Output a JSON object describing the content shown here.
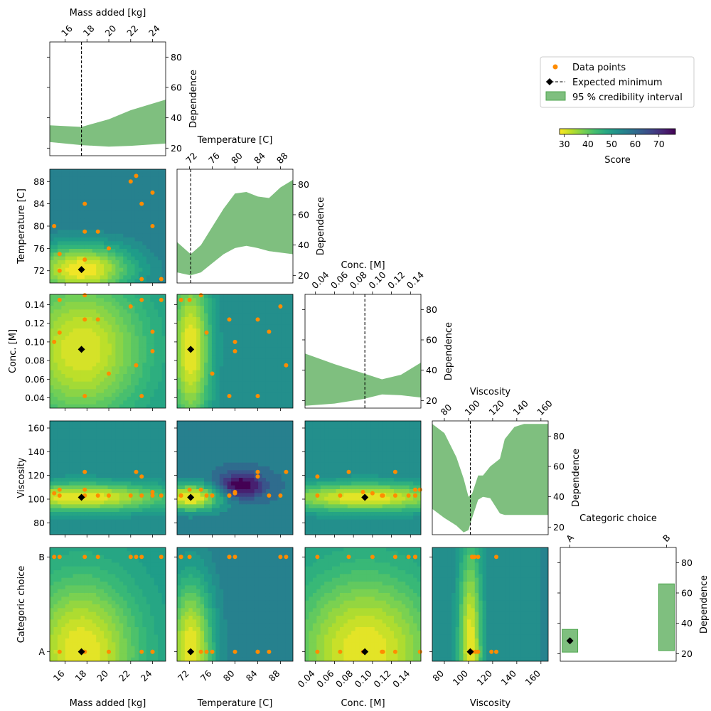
{
  "chart_data": {
    "type": "pairplot",
    "colors": {
      "points": "#ff8c00",
      "minimum": "#000000",
      "credible_fill": "#7fbf7f",
      "credible_edge": "#4ea64e"
    },
    "legend": {
      "placement": "top-right",
      "items": [
        {
          "label": "Data points"
        },
        {
          "label": "Expected minimum"
        },
        {
          "label": "95 % credibility interval"
        }
      ]
    },
    "colorbar": {
      "label": "Score",
      "range": [
        28,
        77
      ],
      "tick_labels": [
        "30",
        "40",
        "50",
        "60",
        "70"
      ],
      "cmap": "viridis_r"
    },
    "variables": [
      {
        "name": "Mass added [kg]",
        "range": [
          14.6,
          25.2
        ],
        "tick_labels": [
          "16",
          "18",
          "20",
          "22",
          "24"
        ],
        "minimum": 17.5
      },
      {
        "name": "Temperature [C]",
        "range": [
          69.8,
          90.2
        ],
        "tick_labels": [
          "72",
          "76",
          "80",
          "84",
          "88"
        ],
        "minimum": 72.2
      },
      {
        "name": "Conc. [M]",
        "range": [
          0.029,
          0.151
        ],
        "tick_labels": [
          "0.04",
          "0.06",
          "0.08",
          "0.10",
          "0.12",
          "0.14"
        ],
        "minimum": 0.092
      },
      {
        "name": "Viscosity",
        "range": [
          70,
          166
        ],
        "tick_labels": [
          "80",
          "100",
          "120",
          "140",
          "160"
        ],
        "minimum": 101.5
      },
      {
        "name": "Categoric choice",
        "range": [
          -0.1,
          1.1
        ],
        "tick_labels": [
          "A",
          "B"
        ],
        "categories": [
          "A",
          "B"
        ],
        "minimum": 0
      }
    ],
    "diagonal": {
      "ylabel": "Dependence",
      "ylim": [
        15,
        90
      ],
      "tick_labels": [
        "20",
        "40",
        "60",
        "80"
      ],
      "bands": [
        {
          "x": [
            14.6,
            17.5,
            20,
            22,
            25.2
          ],
          "lower": [
            24,
            22,
            21,
            21.5,
            23
          ],
          "upper": [
            35,
            34,
            39,
            45,
            52
          ]
        },
        {
          "x": [
            69.8,
            72.2,
            74,
            76,
            78,
            80,
            82,
            84,
            86,
            88,
            90.2
          ],
          "lower": [
            22,
            20,
            22,
            28,
            34,
            38,
            39.5,
            38,
            36,
            35,
            34
          ],
          "upper": [
            42,
            34,
            40,
            52,
            64,
            74,
            75,
            72,
            71,
            78,
            83
          ]
        },
        {
          "x": [
            0.029,
            0.06,
            0.09,
            0.11,
            0.13,
            0.151
          ],
          "lower": [
            16.5,
            18,
            21,
            24,
            23.5,
            22
          ],
          "upper": [
            51,
            44,
            38,
            34,
            37,
            45
          ]
        },
        {
          "x": [
            70,
            80,
            90,
            96,
            100,
            103,
            108,
            112,
            118,
            126,
            130,
            138,
            146,
            166
          ],
          "lower": [
            32,
            26,
            21,
            16.5,
            18,
            26,
            38,
            40,
            39,
            29,
            28,
            28,
            28,
            28
          ],
          "upper": [
            88,
            82,
            66,
            52,
            40,
            42,
            54,
            54,
            60,
            65,
            78,
            86,
            88,
            88
          ]
        }
      ],
      "categoric_boxes": [
        {
          "category": "A",
          "lower": 21,
          "upper": 36,
          "center": 28.5
        },
        {
          "category": "B",
          "lower": 22,
          "upper": 66
        }
      ]
    },
    "points": [
      [
        15,
        80,
        0.1,
        105,
        1
      ],
      [
        15.5,
        75,
        0.11,
        103,
        0
      ],
      [
        15.5,
        72,
        0.145,
        108,
        1
      ],
      [
        17.8,
        84,
        0.124,
        123,
        0
      ],
      [
        17.8,
        79,
        0.042,
        103,
        1
      ],
      [
        17.8,
        74,
        0.15,
        108,
        0
      ],
      [
        19,
        79,
        0.124,
        103,
        1
      ],
      [
        20,
        76,
        0.066,
        103,
        0
      ],
      [
        22,
        88,
        0.138,
        103,
        1
      ],
      [
        22.5,
        89,
        0.075,
        123,
        1
      ],
      [
        23,
        84,
        0.042,
        119,
        0
      ],
      [
        23,
        70.5,
        0.145,
        103,
        1
      ],
      [
        24,
        86,
        0.111,
        103,
        0
      ],
      [
        24,
        80,
        0.09,
        106,
        0
      ],
      [
        24.8,
        70.5,
        0.145,
        103,
        1
      ]
    ],
    "panels": [
      {
        "row": 1,
        "col": 0,
        "data_min": 29,
        "data_max": 58
      },
      {
        "row": 2,
        "col": 0,
        "data_min": 31,
        "data_max": 52
      },
      {
        "row": 2,
        "col": 1,
        "data_min": 30,
        "data_max": 55
      },
      {
        "row": 3,
        "col": 0,
        "data_min": 30,
        "data_max": 55
      },
      {
        "row": 3,
        "col": 1,
        "data_min": 30,
        "data_max": 77
      },
      {
        "row": 3,
        "col": 2,
        "data_min": 30,
        "data_max": 55
      },
      {
        "row": 4,
        "col": 0,
        "data_min": 30,
        "data_max": 52
      },
      {
        "row": 4,
        "col": 1,
        "data_min": 30,
        "data_max": 58
      },
      {
        "row": 4,
        "col": 2,
        "data_min": 30,
        "data_max": 52
      },
      {
        "row": 4,
        "col": 3,
        "data_min": 30,
        "data_max": 55
      }
    ]
  }
}
